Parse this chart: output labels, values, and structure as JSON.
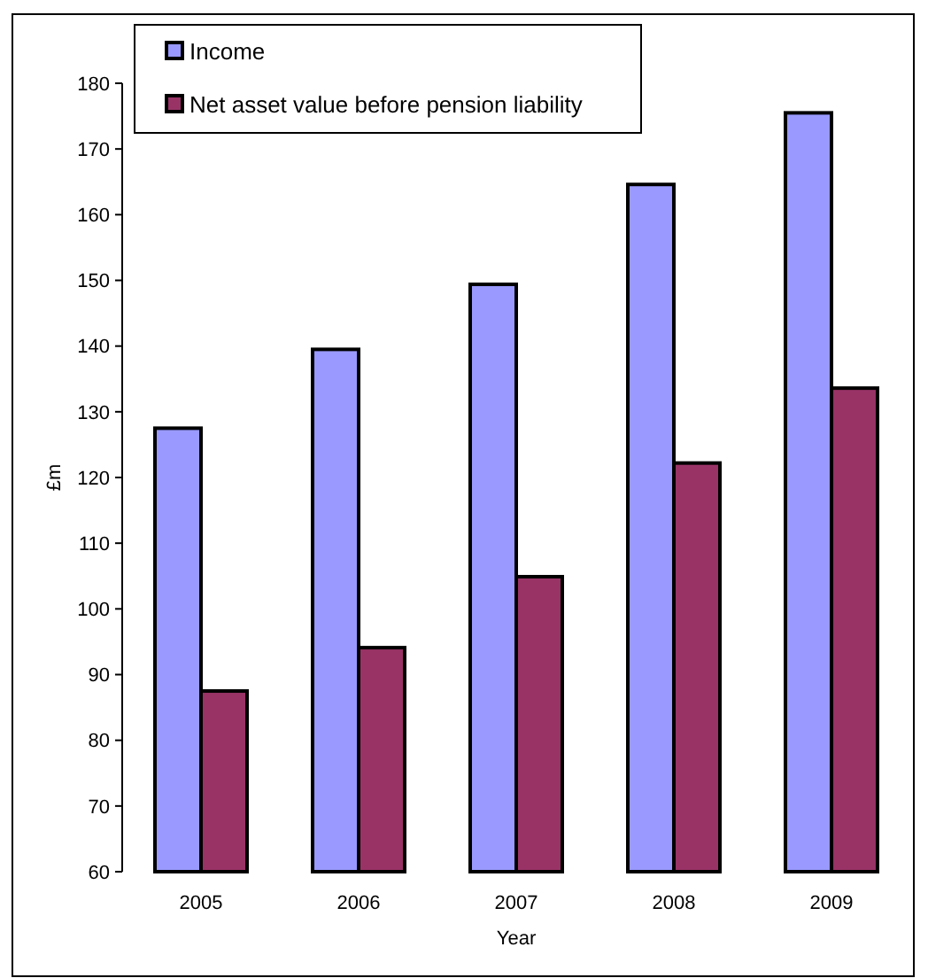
{
  "chart_data": {
    "type": "bar",
    "xlabel": "Year",
    "ylabel": "£m",
    "categories": [
      "2005",
      "2006",
      "2007",
      "2008",
      "2009"
    ],
    "series": [
      {
        "name": "Income",
        "color": "#9999ff",
        "values": [
          127.5,
          139.5,
          149.4,
          164.6,
          175.5
        ]
      },
      {
        "name": "Net asset value before pension liability",
        "color": "#993366",
        "values": [
          87.5,
          94.1,
          104.9,
          122.2,
          133.6
        ]
      }
    ],
    "ylim": [
      60,
      180
    ],
    "yticks": [
      60,
      70,
      80,
      90,
      100,
      110,
      120,
      130,
      140,
      150,
      160,
      170,
      180
    ],
    "grid": false,
    "legend": "top left"
  }
}
